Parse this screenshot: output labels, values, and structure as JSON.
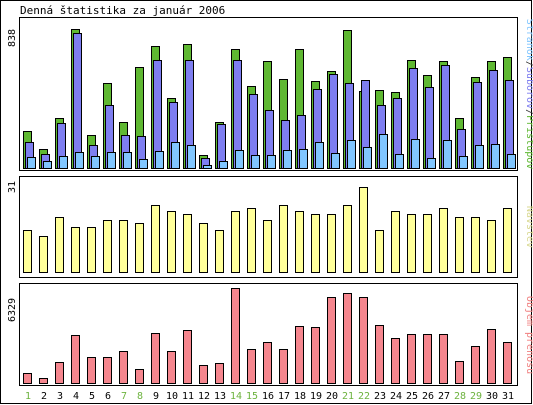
{
  "chart_data": [
    {
      "type": "bar",
      "title": "Denná štatistika za január 2006",
      "categories": [
        "1",
        "2",
        "3",
        "4",
        "5",
        "6",
        "7",
        "8",
        "9",
        "10",
        "11",
        "12",
        "13",
        "14",
        "15",
        "16",
        "17",
        "18",
        "19",
        "20",
        "21",
        "22",
        "23",
        "24",
        "25",
        "26",
        "27",
        "28",
        "29",
        "30",
        "31"
      ],
      "ylabel": "838",
      "side_legend": {
        "stranok": "Stránok",
        "suborov": "Súborov",
        "pristupov": "Prístupov",
        "sep": "/"
      },
      "ylim": [
        0,
        838
      ],
      "series": [
        {
          "name": "Prístupov",
          "color": "#5fb832",
          "values": [
            210,
            110,
            286,
            791,
            188,
            486,
            260,
            573,
            695,
            400,
            707,
            75,
            263,
            676,
            468,
            609,
            510,
            676,
            495,
            555,
            785,
            440,
            446,
            436,
            618,
            530,
            609,
            286,
            516,
            608,
            630
          ]
        },
        {
          "name": "Súborov",
          "color": "#7e7ef0",
          "values": [
            150,
            80,
            256,
            770,
            130,
            357,
            190,
            185,
            618,
            375,
            618,
            55,
            250,
            618,
            420,
            330,
            275,
            300,
            450,
            535,
            486,
            500,
            357,
            400,
            570,
            460,
            588,
            225,
            490,
            560,
            500
          ]
        },
        {
          "name": "Stránok",
          "color": "#81c6ff",
          "values": [
            60,
            40,
            70,
            90,
            70,
            90,
            90,
            50,
            95,
            150,
            130,
            15,
            40,
            100,
            75,
            75,
            100,
            110,
            150,
            85,
            160,
            120,
            195,
            80,
            165,
            55,
            160,
            70,
            130,
            135,
            80
          ]
        }
      ]
    },
    {
      "type": "bar",
      "ylabel": "31",
      "side_label": "Návštev",
      "ylim": [
        0,
        31
      ],
      "series": [
        {
          "name": "Návštev",
          "color": "#ffff9a",
          "values": [
            14,
            12,
            18,
            15,
            15,
            17,
            17,
            16,
            22,
            20,
            19,
            16,
            14,
            20,
            21,
            17,
            22,
            20,
            19,
            19,
            22,
            28,
            14,
            20,
            19,
            19,
            21,
            18,
            18,
            17,
            21
          ]
        }
      ]
    },
    {
      "type": "bar",
      "ylabel": "6329",
      "side_label": "Objem prenosu",
      "ylim": [
        0,
        6329
      ],
      "series": [
        {
          "name": "Objem prenosu",
          "color": "#f5868e",
          "values": [
            680,
            340,
            1370,
            3200,
            1710,
            1740,
            2100,
            950,
            3300,
            2130,
            3560,
            1190,
            1360,
            6329,
            2280,
            2700,
            2280,
            3800,
            3700,
            5760,
            6000,
            5760,
            3880,
            3000,
            3240,
            3240,
            3240,
            1460,
            2470,
            3630,
            2700
          ]
        }
      ]
    }
  ],
  "weekend_days": [
    "1",
    "7",
    "8",
    "14",
    "15",
    "21",
    "22",
    "28",
    "29"
  ],
  "colors": {
    "frame": "#000000",
    "weekday_label": "#000000",
    "weekend_label": "#6db33f",
    "stranok_label": "#81c6ff",
    "suborov_label": "#7e7ef0",
    "pristupov_label": "#5fb832",
    "navstev_label": "#d8d890",
    "objem_label": "#f08080",
    "sep_label": "#333333"
  }
}
